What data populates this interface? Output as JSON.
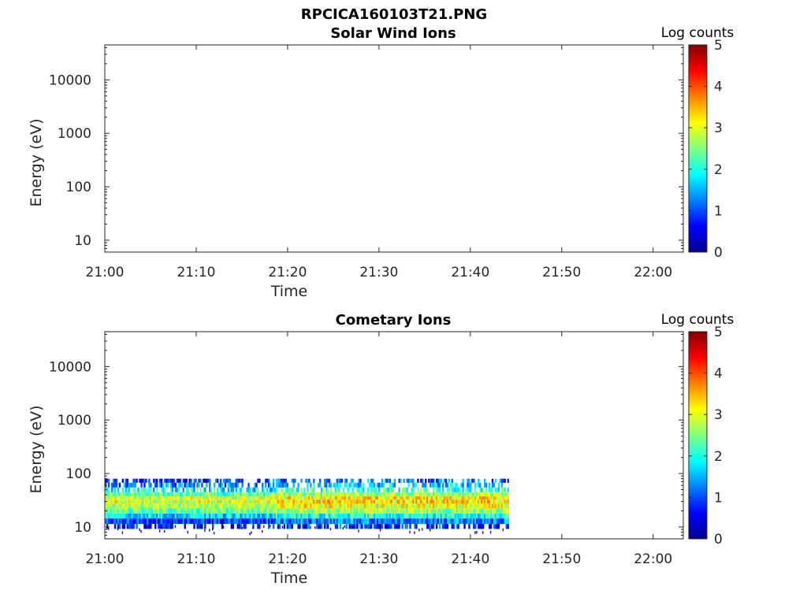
{
  "figure": {
    "title": "RPCICA160103T21.PNG"
  },
  "colormap": {
    "stops": [
      "#00008f",
      "#0000ff",
      "#0080ff",
      "#00ffff",
      "#80ff80",
      "#ffff00",
      "#ff8000",
      "#ff0000",
      "#800000"
    ]
  },
  "chart_data": [
    {
      "type": "heatmap",
      "title": "Solar Wind Ions",
      "xlabel": "Time",
      "ylabel": "Energy (eV)",
      "x_ticks": [
        "21:00",
        "21:10",
        "21:20",
        "21:30",
        "21:40",
        "21:50",
        "22:00"
      ],
      "x_range_minutes": [
        0,
        63.3
      ],
      "y_scale": "log",
      "y_ticks": [
        "10",
        "100",
        "1000",
        "10000"
      ],
      "y_range": [
        6,
        45000
      ],
      "colorbar": {
        "label": "Log counts",
        "ticks": [
          "0",
          "1",
          "2",
          "3",
          "4",
          "5"
        ],
        "range": [
          0,
          5
        ]
      },
      "grid": false,
      "data": []
    },
    {
      "type": "heatmap",
      "title": "Cometary Ions",
      "xlabel": "Time",
      "ylabel": "Energy (eV)",
      "x_ticks": [
        "21:00",
        "21:10",
        "21:20",
        "21:30",
        "21:40",
        "21:50",
        "22:00"
      ],
      "x_range_minutes": [
        0,
        63.3
      ],
      "y_scale": "log",
      "y_ticks": [
        "10",
        "100",
        "1000",
        "10000"
      ],
      "y_range": [
        6,
        45000
      ],
      "colorbar": {
        "label": "Log counts",
        "ticks": [
          "0",
          "1",
          "2",
          "3",
          "4",
          "5"
        ],
        "range": [
          0,
          5
        ]
      },
      "grid": false,
      "data": {
        "time_range_minutes": [
          0,
          44.2
        ],
        "energy_range_eV": [
          12,
          80
        ],
        "typical_log_counts": {
          "10": 0.6,
          "13": 1.0,
          "16": 1.8,
          "20": 2.4,
          "25": 2.8,
          "30": 3.0,
          "35": 2.9,
          "40": 2.4,
          "50": 1.9,
          "60": 1.3,
          "75": 0.9
        },
        "note_segments": [
          {
            "from_minutes": 0,
            "to_minutes": 18.3,
            "level": "lower"
          },
          {
            "from_minutes": 18.3,
            "to_minutes": 44.2,
            "level": "higher"
          }
        ]
      }
    }
  ]
}
